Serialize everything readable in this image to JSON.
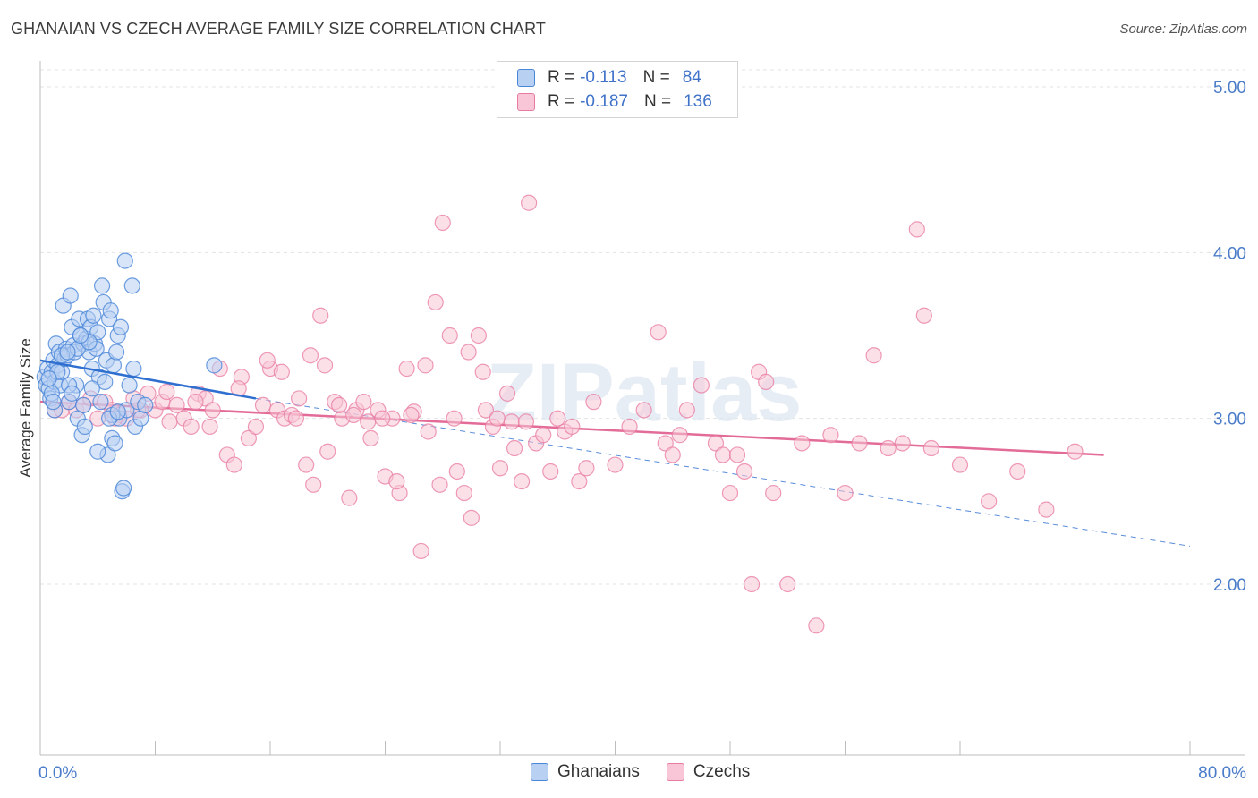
{
  "title": "GHANAIAN VS CZECH AVERAGE FAMILY SIZE CORRELATION CHART",
  "source": "Source: ZipAtlas.com",
  "watermark": "ZIPatlas",
  "legend": {
    "rows": [
      {
        "r_label": "R =",
        "r_value": "-0.113",
        "n_label": "N =",
        "n_value": "84"
      },
      {
        "r_label": "R =",
        "r_value": "-0.187",
        "n_label": "N =",
        "n_value": "136"
      }
    ]
  },
  "bottom_legend": {
    "items": [
      "Ghanaians",
      "Czechs"
    ]
  },
  "colors": {
    "blue": "#4a86d8",
    "blue_fill": "#b8d0f2",
    "pink": "#e87aa0",
    "pink_fill": "#f8c6d6",
    "blue_line": "#2f6fd0",
    "pink_line": "#e36b98",
    "axis_text": "#4a7cc9"
  },
  "chart_data": {
    "type": "scatter",
    "title": "GHANAIAN VS CZECH AVERAGE FAMILY SIZE CORRELATION CHART",
    "xlabel": "",
    "ylabel": "Average Family Size",
    "xlim": [
      0,
      80
    ],
    "ylim": [
      1.0,
      5.0
    ],
    "x_tick_labels": [
      "0.0%",
      "80.0%"
    ],
    "y_ticks": [
      2.0,
      3.0,
      4.0,
      5.0
    ],
    "y_tick_labels": [
      "2.00",
      "3.00",
      "4.00",
      "5.00"
    ],
    "grid": true,
    "legend_position": "top-center",
    "series": [
      {
        "name": "Ghanaians",
        "R": -0.113,
        "N": 84,
        "trend": {
          "x": [
            0,
            15
          ],
          "y": [
            3.35,
            3.12
          ],
          "extended_x": [
            15,
            80
          ],
          "extended_y": [
            3.12,
            2.23
          ]
        },
        "points": [
          [
            0.3,
            3.25
          ],
          [
            0.4,
            3.2
          ],
          [
            0.5,
            3.3
          ],
          [
            0.6,
            3.18
          ],
          [
            0.7,
            3.12
          ],
          [
            0.8,
            3.28
          ],
          [
            0.9,
            3.35
          ],
          [
            1.0,
            3.22
          ],
          [
            1.1,
            3.45
          ],
          [
            1.2,
            3.32
          ],
          [
            1.3,
            3.4
          ],
          [
            1.4,
            3.2
          ],
          [
            1.5,
            3.28
          ],
          [
            1.6,
            3.68
          ],
          [
            1.7,
            3.36
          ],
          [
            1.8,
            3.42
          ],
          [
            1.9,
            3.38
          ],
          [
            2.0,
            3.1
          ],
          [
            2.1,
            3.74
          ],
          [
            2.2,
            3.55
          ],
          [
            2.3,
            3.44
          ],
          [
            2.4,
            3.4
          ],
          [
            2.5,
            3.2
          ],
          [
            2.6,
            3.0
          ],
          [
            2.7,
            3.6
          ],
          [
            2.8,
            3.5
          ],
          [
            2.9,
            2.9
          ],
          [
            3.0,
            3.45
          ],
          [
            3.1,
            2.95
          ],
          [
            3.2,
            3.48
          ],
          [
            3.3,
            3.6
          ],
          [
            3.4,
            3.4
          ],
          [
            3.5,
            3.55
          ],
          [
            3.6,
            3.3
          ],
          [
            3.7,
            3.62
          ],
          [
            3.8,
            3.45
          ],
          [
            3.9,
            3.42
          ],
          [
            4.0,
            3.52
          ],
          [
            4.1,
            3.25
          ],
          [
            4.2,
            3.1
          ],
          [
            4.3,
            3.8
          ],
          [
            4.4,
            3.7
          ],
          [
            4.5,
            3.22
          ],
          [
            4.6,
            3.35
          ],
          [
            4.7,
            2.78
          ],
          [
            4.8,
            3.6
          ],
          [
            4.9,
            3.65
          ],
          [
            5.0,
            2.88
          ],
          [
            5.1,
            3.32
          ],
          [
            5.2,
            2.85
          ],
          [
            5.3,
            3.4
          ],
          [
            5.4,
            3.5
          ],
          [
            5.5,
            3.0
          ],
          [
            5.6,
            3.55
          ],
          [
            5.7,
            2.56
          ],
          [
            5.8,
            2.58
          ],
          [
            5.9,
            3.95
          ],
          [
            6.0,
            3.05
          ],
          [
            6.2,
            3.2
          ],
          [
            6.4,
            3.8
          ],
          [
            6.6,
            2.95
          ],
          [
            6.8,
            3.1
          ],
          [
            7.0,
            3.0
          ],
          [
            7.3,
            3.08
          ],
          [
            2.0,
            3.2
          ],
          [
            1.0,
            3.05
          ],
          [
            0.8,
            3.15
          ],
          [
            1.5,
            3.38
          ],
          [
            2.6,
            3.42
          ],
          [
            3.4,
            3.46
          ],
          [
            4.0,
            2.8
          ],
          [
            3.0,
            3.08
          ],
          [
            6.5,
            3.3
          ],
          [
            12.1,
            3.32
          ],
          [
            5.0,
            3.02
          ],
          [
            2.2,
            3.15
          ],
          [
            1.2,
            3.28
          ],
          [
            0.6,
            3.24
          ],
          [
            3.6,
            3.18
          ],
          [
            4.8,
            3.0
          ],
          [
            2.8,
            3.5
          ],
          [
            1.9,
            3.4
          ],
          [
            5.4,
            3.04
          ],
          [
            0.9,
            3.1
          ]
        ]
      },
      {
        "name": "Czechs",
        "R": -0.187,
        "N": 136,
        "trend": {
          "x": [
            0,
            74
          ],
          "y": [
            3.1,
            2.78
          ]
        },
        "points": [
          [
            1.0,
            3.05
          ],
          [
            1.5,
            3.05
          ],
          [
            2.0,
            3.1
          ],
          [
            2.5,
            3.05
          ],
          [
            3.0,
            3.08
          ],
          [
            3.5,
            3.12
          ],
          [
            4.0,
            3.0
          ],
          [
            4.5,
            3.1
          ],
          [
            5.0,
            3.05
          ],
          [
            5.5,
            3.02
          ],
          [
            6.0,
            3.0
          ],
          [
            6.5,
            3.12
          ],
          [
            7.0,
            3.05
          ],
          [
            7.5,
            3.15
          ],
          [
            8.0,
            3.05
          ],
          [
            8.5,
            3.1
          ],
          [
            9.0,
            2.98
          ],
          [
            9.5,
            3.08
          ],
          [
            10.0,
            3.0
          ],
          [
            10.5,
            2.95
          ],
          [
            11.0,
            3.15
          ],
          [
            11.5,
            3.12
          ],
          [
            12.0,
            3.05
          ],
          [
            12.5,
            3.3
          ],
          [
            13.0,
            2.78
          ],
          [
            13.5,
            2.72
          ],
          [
            14.0,
            3.25
          ],
          [
            14.5,
            2.88
          ],
          [
            15.0,
            2.95
          ],
          [
            15.5,
            3.08
          ],
          [
            16.0,
            3.3
          ],
          [
            16.5,
            3.05
          ],
          [
            17.0,
            3.0
          ],
          [
            17.5,
            3.02
          ],
          [
            18.0,
            3.12
          ],
          [
            18.5,
            2.72
          ],
          [
            19.0,
            2.6
          ],
          [
            19.5,
            3.62
          ],
          [
            20.0,
            2.8
          ],
          [
            20.5,
            3.1
          ],
          [
            21.0,
            3.0
          ],
          [
            21.5,
            2.52
          ],
          [
            22.0,
            3.05
          ],
          [
            22.5,
            3.1
          ],
          [
            23.0,
            2.88
          ],
          [
            23.5,
            3.05
          ],
          [
            24.0,
            2.65
          ],
          [
            24.5,
            3.0
          ],
          [
            25.0,
            2.55
          ],
          [
            25.5,
            3.3
          ],
          [
            26.0,
            3.04
          ],
          [
            26.5,
            2.2
          ],
          [
            27.0,
            2.92
          ],
          [
            27.5,
            3.7
          ],
          [
            28.0,
            4.18
          ],
          [
            28.5,
            3.5
          ],
          [
            29.0,
            2.68
          ],
          [
            29.5,
            2.55
          ],
          [
            30.0,
            2.4
          ],
          [
            30.5,
            3.5
          ],
          [
            31.0,
            3.05
          ],
          [
            31.5,
            2.95
          ],
          [
            32.0,
            2.7
          ],
          [
            32.5,
            3.15
          ],
          [
            33.0,
            2.82
          ],
          [
            33.5,
            2.62
          ],
          [
            34.0,
            4.3
          ],
          [
            34.5,
            2.85
          ],
          [
            35.0,
            2.9
          ],
          [
            35.5,
            2.68
          ],
          [
            36.0,
            3.0
          ],
          [
            36.5,
            2.92
          ],
          [
            37.0,
            2.95
          ],
          [
            37.5,
            2.62
          ],
          [
            38.0,
            2.7
          ],
          [
            38.5,
            3.1
          ],
          [
            40.0,
            2.72
          ],
          [
            41.0,
            2.95
          ],
          [
            42.0,
            3.05
          ],
          [
            43.0,
            3.52
          ],
          [
            43.5,
            2.85
          ],
          [
            44.0,
            2.78
          ],
          [
            44.5,
            2.9
          ],
          [
            45.0,
            3.05
          ],
          [
            46.0,
            3.2
          ],
          [
            47.0,
            2.85
          ],
          [
            47.5,
            2.78
          ],
          [
            48.0,
            2.55
          ],
          [
            48.5,
            2.78
          ],
          [
            49.0,
            2.68
          ],
          [
            49.5,
            2.0
          ],
          [
            50.0,
            3.28
          ],
          [
            50.5,
            3.22
          ],
          [
            51.0,
            2.55
          ],
          [
            52.0,
            2.0
          ],
          [
            53.0,
            2.85
          ],
          [
            54.0,
            1.75
          ],
          [
            55.0,
            2.9
          ],
          [
            56.0,
            2.55
          ],
          [
            57.0,
            2.85
          ],
          [
            58.0,
            3.38
          ],
          [
            59.0,
            2.82
          ],
          [
            60.0,
            2.85
          ],
          [
            61.0,
            4.14
          ],
          [
            61.5,
            3.62
          ],
          [
            62.0,
            2.82
          ],
          [
            64.0,
            2.72
          ],
          [
            66.0,
            2.5
          ],
          [
            68.0,
            2.68
          ],
          [
            70.0,
            2.45
          ],
          [
            72.0,
            2.8
          ],
          [
            5.2,
            3.0
          ],
          [
            6.8,
            3.05
          ],
          [
            8.8,
            3.16
          ],
          [
            10.8,
            3.1
          ],
          [
            11.8,
            2.95
          ],
          [
            13.8,
            3.18
          ],
          [
            15.8,
            3.35
          ],
          [
            16.8,
            3.28
          ],
          [
            17.8,
            3.0
          ],
          [
            18.8,
            3.38
          ],
          [
            19.8,
            3.32
          ],
          [
            20.8,
            3.08
          ],
          [
            21.8,
            3.02
          ],
          [
            22.8,
            2.98
          ],
          [
            23.8,
            3.0
          ],
          [
            24.8,
            2.62
          ],
          [
            25.8,
            3.02
          ],
          [
            26.8,
            3.32
          ],
          [
            27.8,
            2.6
          ],
          [
            28.8,
            3.0
          ],
          [
            29.8,
            3.4
          ],
          [
            30.8,
            3.28
          ],
          [
            31.8,
            3.0
          ],
          [
            32.8,
            2.98
          ],
          [
            33.8,
            2.98
          ]
        ]
      }
    ]
  }
}
